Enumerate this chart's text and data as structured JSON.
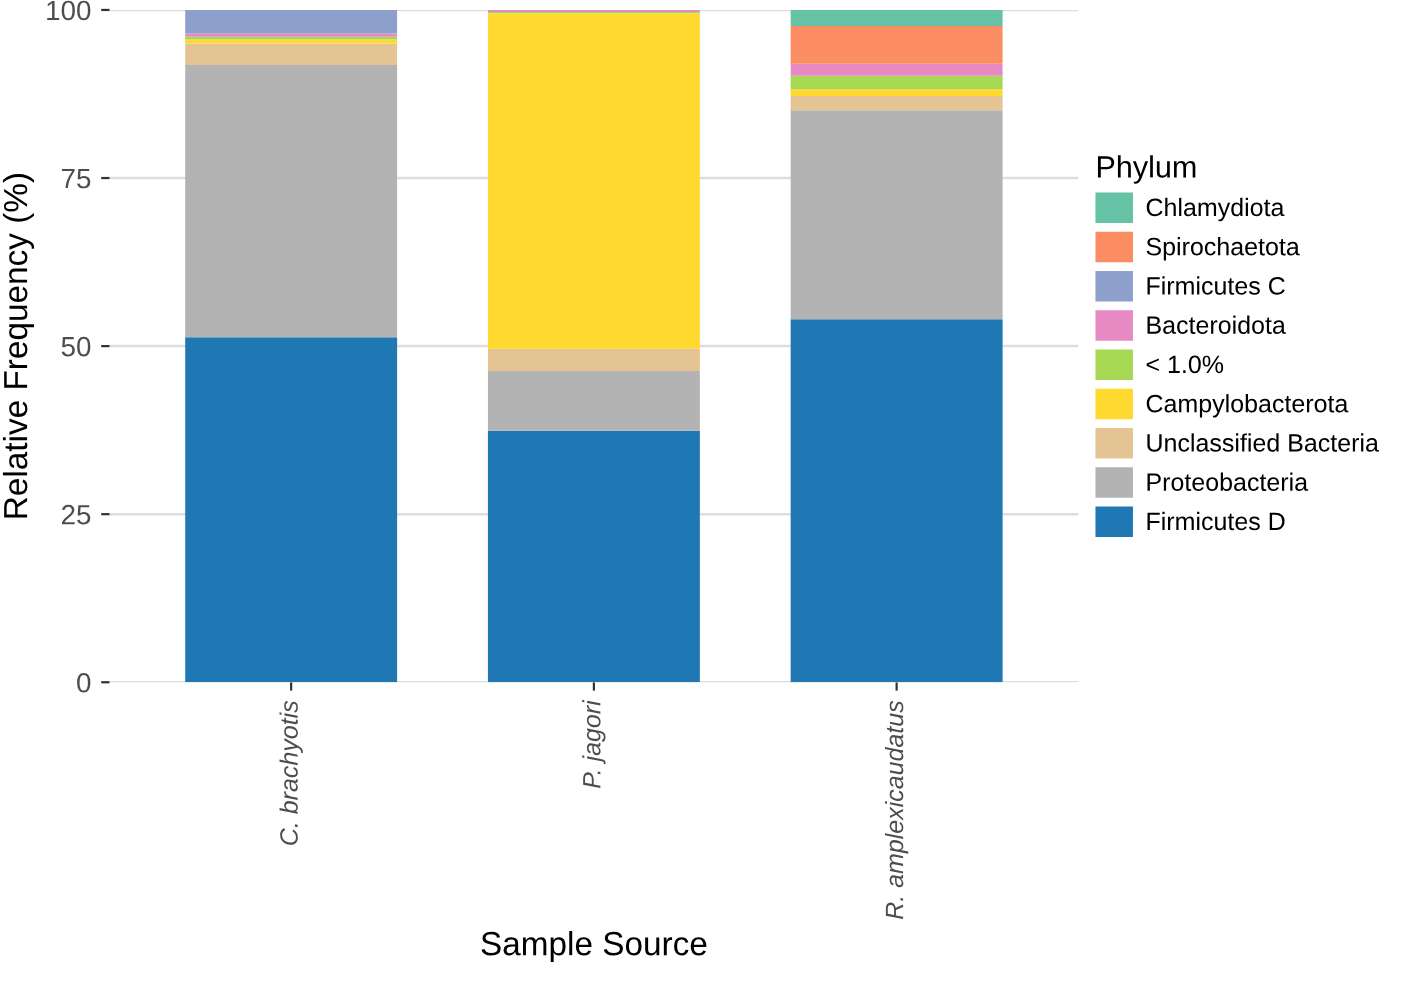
{
  "chart_data": {
    "type": "bar",
    "stacked": true,
    "xlabel": "Sample Source",
    "ylabel": "Relative Frequency (%)",
    "legend_title": "Phylum",
    "categories": [
      "C. brachyotis",
      "P. jagori",
      "R. amplexicaudatus"
    ],
    "series": [
      {
        "name": "Firmicutes D",
        "color": "#1f78b4",
        "values": [
          51.3,
          37.4,
          54.0
        ]
      },
      {
        "name": "Proteobacteria",
        "color": "#b3b3b3",
        "values": [
          40.5,
          8.9,
          31.1
        ]
      },
      {
        "name": "Unclassified Bacteria",
        "color": "#e5c494",
        "values": [
          3.2,
          3.3,
          2.1
        ]
      },
      {
        "name": "Campylobacterota",
        "color": "#ffd92f",
        "values": [
          0.6,
          49.9,
          1.0
        ]
      },
      {
        "name": "< 1.0%",
        "color": "#a6d854",
        "values": [
          0.4,
          0.2,
          2.0
        ]
      },
      {
        "name": "Bacteroidota",
        "color": "#e78ac3",
        "values": [
          0.5,
          0.3,
          1.8
        ]
      },
      {
        "name": "Firmicutes C",
        "color": "#8da0cb",
        "values": [
          3.5,
          null,
          null
        ]
      },
      {
        "name": "Spirochaetota",
        "color": "#fc8d62",
        "values": [
          null,
          null,
          5.6
        ]
      },
      {
        "name": "Chlamydiota",
        "color": "#66c2a5",
        "values": [
          null,
          null,
          2.4
        ]
      }
    ],
    "ylim": [
      0,
      100
    ],
    "yticks": [
      0,
      25,
      50,
      75,
      100
    ],
    "grid": "y",
    "legend": "right"
  }
}
